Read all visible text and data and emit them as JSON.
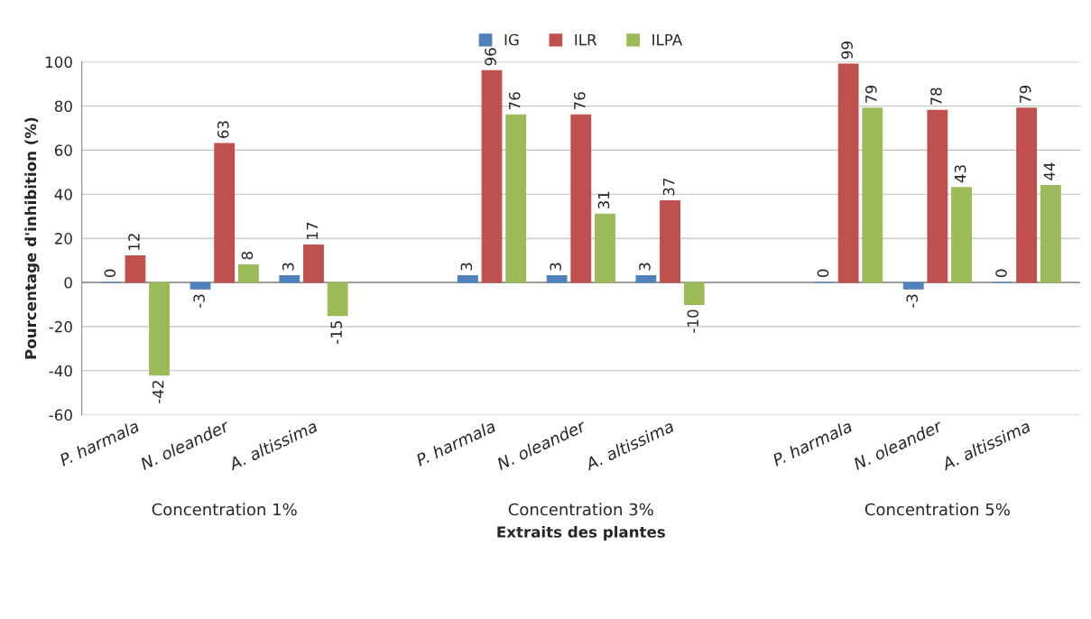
{
  "chart_data": {
    "type": "bar",
    "categories": [
      "P. harmala",
      "N. oleander",
      "A. altissima",
      null,
      "P. harmala",
      "N. oleander",
      "A. altissima",
      null,
      "P. harmala",
      "N. oleander",
      "A. altissima"
    ],
    "series": [
      {
        "name": "IG",
        "color": "#4f81bd",
        "values": [
          0,
          -3,
          3,
          null,
          3,
          3,
          3,
          null,
          0,
          -3,
          0
        ]
      },
      {
        "name": "ILR",
        "color": "#c0504d",
        "values": [
          12,
          63,
          17,
          null,
          96,
          76,
          37,
          null,
          99,
          78,
          79
        ]
      },
      {
        "name": "ILPA",
        "color": "#9bbb59",
        "values": [
          -42,
          8,
          -15,
          null,
          76,
          31,
          -10,
          null,
          79,
          43,
          44
        ]
      }
    ],
    "xlabel": "Extraits des plantes",
    "ylabel": "Pourcentage d'inhibition (%)",
    "annotations": [
      "Concentration 1%",
      "Concentration 3%",
      "Concentration 5%"
    ],
    "ylim": [
      -60,
      100
    ],
    "yticks": [
      -60,
      -40,
      -20,
      0,
      20,
      40,
      60,
      80,
      100
    ],
    "grid": "y",
    "legend": "top",
    "data_labels": true
  }
}
